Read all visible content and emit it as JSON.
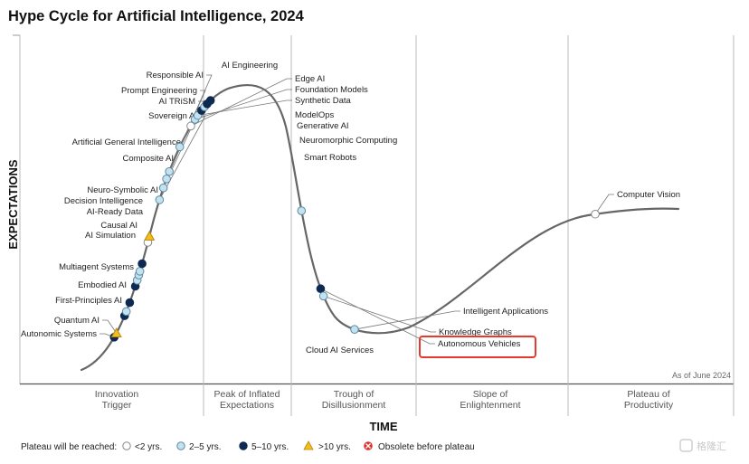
{
  "chart_data": {
    "type": "scatter",
    "title": "Hype Cycle for Artificial Intelligence, 2024",
    "xlabel": "TIME",
    "ylabel": "EXPECTATIONS",
    "note": "As of June 2024",
    "phases": [
      {
        "line1": "Innovation",
        "line2": "Trigger"
      },
      {
        "line1": "Peak of Inflated",
        "line2": "Expectations"
      },
      {
        "line1": "Trough of",
        "line2": "Disillusionment"
      },
      {
        "line1": "Slope of",
        "line2": "Enlightenment"
      },
      {
        "line1": "Plateau of",
        "line2": "Productivity"
      }
    ],
    "legend": {
      "title": "Plateau will be reached:",
      "items": [
        {
          "key": "lt2",
          "label": "<2 yrs.",
          "marker": "circle",
          "color": "#ffffff"
        },
        {
          "key": "2to5",
          "label": "2–5 yrs.",
          "marker": "circle",
          "color": "#c5e1ee"
        },
        {
          "key": "5to10",
          "label": "5–10 yrs.",
          "marker": "circle",
          "color": "#0d2a52"
        },
        {
          "key": "gt10",
          "label": ">10 yrs.",
          "marker": "triangle",
          "color": "#f2bd1d"
        },
        {
          "key": "obsolete",
          "label": "Obsolete before plateau",
          "marker": "x",
          "color": "#d9322c"
        }
      ]
    },
    "technologies": [
      {
        "name": "Autonomic Systems",
        "category": "5to10",
        "pos": 0.0478
      },
      {
        "name": "Quantum AI",
        "category": "gt10",
        "pos": 0.0525
      },
      {
        "name": "First-Principles AI",
        "category": "5to10",
        "pos": 0.0719
      },
      {
        "name": "Embodied AI",
        "category": "2to5",
        "pos": 0.0766
      },
      {
        "name": "Multiagent Systems",
        "category": "5to10",
        "pos": 0.0862
      },
      {
        "name": "AI Simulation",
        "category": "5to10",
        "pos": 0.1037
      },
      {
        "name": "Causal AI",
        "category": "2to5",
        "pos": 0.1101
      },
      {
        "name": "AI-Ready Data",
        "category": "2to5",
        "pos": 0.1156
      },
      {
        "name": "Decision Intelligence",
        "category": "2to5",
        "pos": 0.1196
      },
      {
        "name": "Neuro-Symbolic AI",
        "category": "5to10",
        "pos": 0.1276
      },
      {
        "name": "Composite AI",
        "category": "lt2",
        "pos": 0.1499
      },
      {
        "name": "Artificial General Intelligence",
        "category": "gt10",
        "pos": 0.1563
      },
      {
        "name": "Sovereign AI",
        "category": "2to5",
        "pos": 0.1946
      },
      {
        "name": "AI TRiSM",
        "category": "2to5",
        "pos": 0.2073
      },
      {
        "name": "Prompt Engineering",
        "category": "2to5",
        "pos": 0.2169
      },
      {
        "name": "Responsible AI",
        "category": "2to5",
        "pos": 0.2249
      },
      {
        "name": "AI Engineering",
        "category": "2to5",
        "pos": 0.252
      },
      {
        "name": "Edge AI",
        "category": "lt2",
        "pos": 0.2759
      },
      {
        "name": "Foundation Models",
        "category": "2to5",
        "pos": 0.2839
      },
      {
        "name": "Synthetic Data",
        "category": "2to5",
        "pos": 0.2887
      },
      {
        "name": "ModelOps",
        "category": "5to10",
        "pos": 0.2951
      },
      {
        "name": "Generative AI",
        "category": "2to5",
        "pos": 0.2998
      },
      {
        "name": "Neuromorphic Computing",
        "category": "5to10",
        "pos": 0.3038
      },
      {
        "name": "Smart Robots",
        "category": "5to10",
        "pos": 0.3086
      },
      {
        "name": "Cloud AI Services",
        "category": "2to5",
        "pos": 0.4992
      },
      {
        "name": "Autonomous Vehicles",
        "category": "5to10",
        "pos": 0.5805
      },
      {
        "name": "Knowledge Graphs",
        "category": "2to5",
        "pos": 0.5885
      },
      {
        "name": "Intelligent Applications",
        "category": "2to5",
        "pos": 0.6364
      },
      {
        "name": "Computer Vision",
        "category": "lt2",
        "pos": 0.9155
      }
    ],
    "highlighted": "Autonomous Vehicles"
  },
  "watermark": "格隆汇"
}
